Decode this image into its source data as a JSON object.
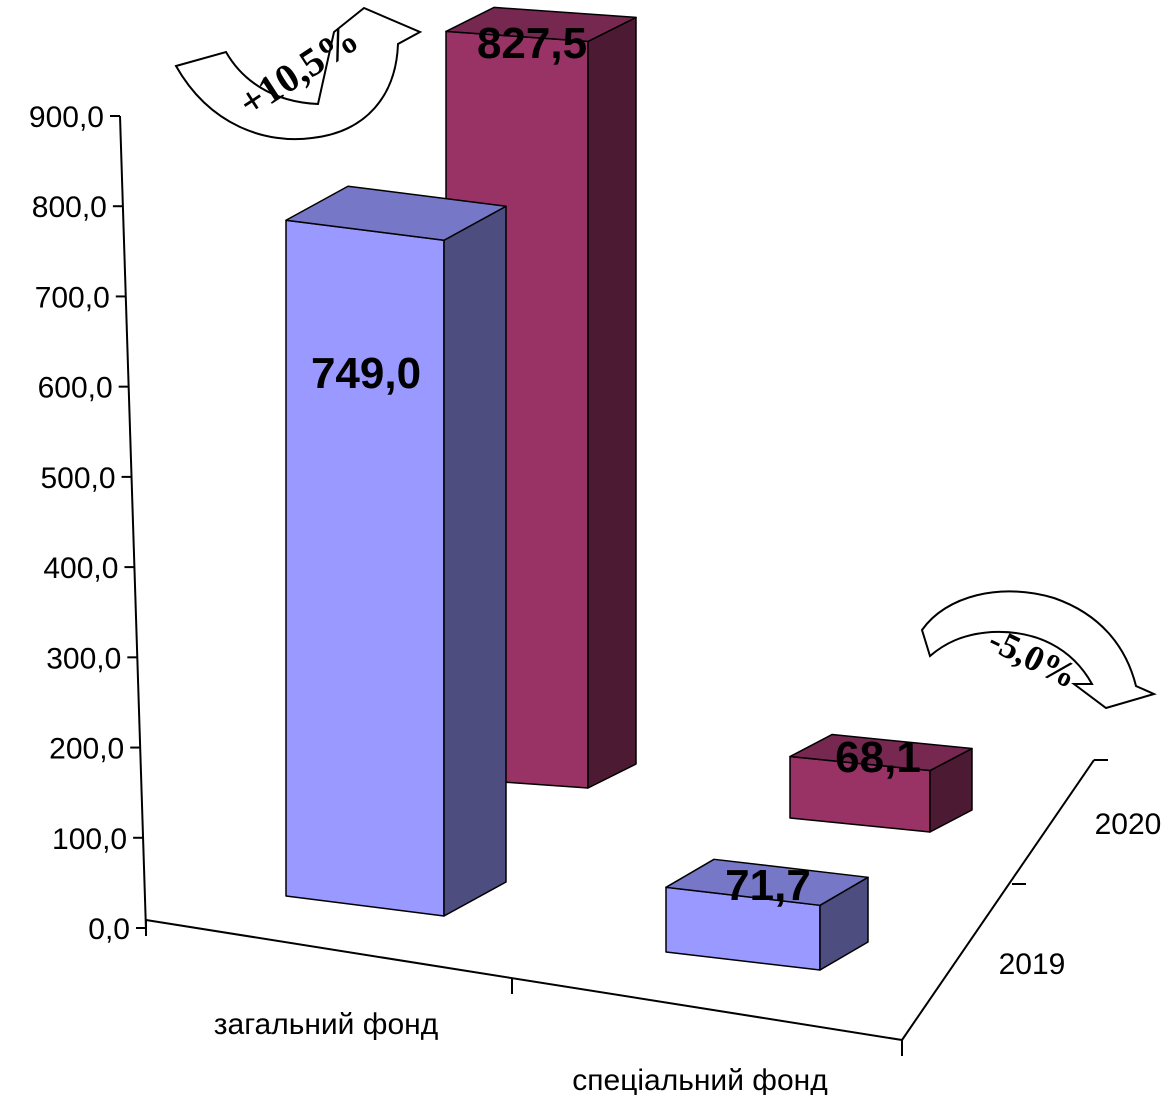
{
  "chart_data": {
    "type": "bar",
    "categories": [
      "загальний фонд",
      "спеціальний фонд"
    ],
    "series": [
      {
        "name": "2019",
        "values": [
          749.0,
          71.7
        ],
        "labels": [
          "749,0",
          "71,7"
        ],
        "color": "#9999FF"
      },
      {
        "name": "2020",
        "values": [
          827.5,
          68.1
        ],
        "labels": [
          "827,5",
          "68,1"
        ],
        "color": "#993366"
      }
    ],
    "ylim": [
      0,
      900
    ],
    "yticks": [
      "0,0",
      "100,0",
      "200,0",
      "300,0",
      "400,0",
      "500,0",
      "600,0",
      "700,0",
      "800,0",
      "900,0"
    ],
    "depth_labels": [
      "2019",
      "2020"
    ],
    "annotations": [
      "+10,5%",
      "-5,0%"
    ],
    "grid": false,
    "title": "",
    "xlabel": "",
    "ylabel": ""
  }
}
